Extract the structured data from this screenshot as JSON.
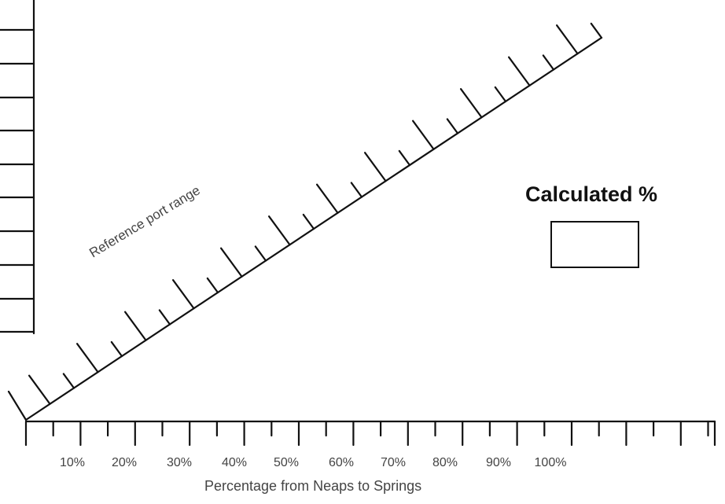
{
  "ruler": {
    "label": "Reference port range"
  },
  "x_axis": {
    "title": "Percentage from Neaps to Springs",
    "tick_labels": [
      "10%",
      "20%",
      "30%",
      "40%",
      "50%",
      "60%",
      "70%",
      "80%",
      "90%",
      "100%"
    ]
  },
  "calculated": {
    "label": "Calculated %",
    "value": ""
  }
}
